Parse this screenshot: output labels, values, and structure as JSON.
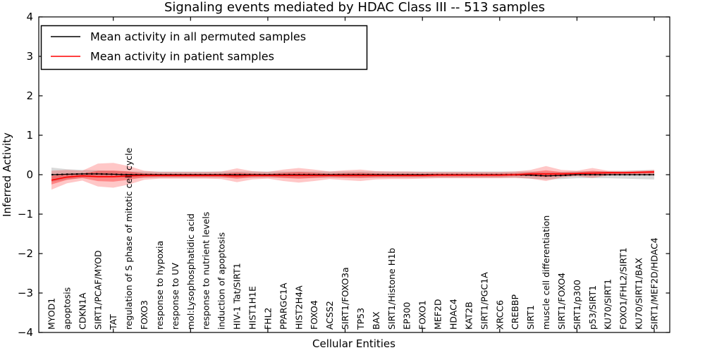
{
  "title": "Signaling events mediated by HDAC Class III -- 513 samples",
  "legend": {
    "position": "upper left",
    "entries": [
      {
        "label": "Mean activity in all permuted samples",
        "color": "#000000"
      },
      {
        "label": "Mean activity in patient samples",
        "color": "#ff0000"
      }
    ]
  },
  "chart_data": {
    "type": "line",
    "title": "Signaling events mediated by HDAC Class III -- 513 samples",
    "xlabel": "Cellular Entities",
    "ylabel": "Inferred Activity",
    "ylim": [
      -4,
      4
    ],
    "yticks": [
      -4,
      -3,
      -2,
      -1,
      0,
      1,
      2,
      3,
      4
    ],
    "xticks": [
      5,
      10,
      15,
      20,
      25,
      30,
      35,
      40
    ],
    "grid": false,
    "legend_position": "upper left",
    "sample_count": 513,
    "categories": [
      "MYOD1",
      "apoptosis",
      "CDKN1A",
      "SIRT1/PCAF/MYOD",
      "TAT",
      "regulation of S phase of mitotic cell cycle",
      "FOXO3",
      "response to hypoxia",
      "response to UV",
      "mol:Lysophosphatidic acid",
      "response to nutrient levels",
      "induction of apoptosis",
      "HIV-1 Tat/SIRT1",
      "HIST1H1E",
      "FHL2",
      "PPARGC1A",
      "HIST2H4A",
      "FOXO4",
      "ACSS2",
      "SIRT1/FOXO3a",
      "TP53",
      "BAX",
      "SIRT1/Histone H1b",
      "EP300",
      "FOXO1",
      "MEF2D",
      "HDAC4",
      "KAT2B",
      "SIRT1/PGC1A",
      "XRCC6",
      "CREBBP",
      "SIRT1",
      "muscle cell differentiation",
      "SIRT1/FOXO4",
      "SIRT1/p300",
      "p53/SIRT1",
      "KU70/SIRT1",
      "FOXO1/FHL2/SIRT1",
      "KU70/SIRT1/BAX",
      "SIRT1/MEF2D/HDAC4"
    ],
    "series": [
      {
        "name": "Mean activity in all permuted samples",
        "color": "#000000",
        "style": "solid-with-dash-markers",
        "values": [
          0.0,
          0.01,
          0.02,
          0.02,
          0.01,
          0.0,
          0.0,
          0.0,
          0.0,
          0.0,
          0.0,
          0.0,
          0.0,
          0.0,
          0.0,
          0.0,
          0.0,
          0.0,
          0.0,
          0.0,
          0.0,
          0.0,
          0.0,
          0.0,
          0.0,
          0.0,
          0.0,
          0.0,
          0.0,
          0.0,
          0.0,
          -0.01,
          -0.03,
          -0.02,
          0.0,
          0.0,
          0.0,
          0.0,
          0.0,
          0.0
        ],
        "band_half_width": [
          0.18,
          0.13,
          0.1,
          0.09,
          0.08,
          0.08,
          0.08,
          0.08,
          0.08,
          0.08,
          0.08,
          0.08,
          0.08,
          0.08,
          0.08,
          0.08,
          0.08,
          0.08,
          0.08,
          0.08,
          0.08,
          0.08,
          0.08,
          0.08,
          0.08,
          0.08,
          0.08,
          0.08,
          0.08,
          0.08,
          0.08,
          0.09,
          0.09,
          0.09,
          0.09,
          0.09,
          0.09,
          0.1,
          0.11,
          0.12
        ],
        "band_color": "#aaaaaa"
      },
      {
        "name": "Mean activity in patient samples",
        "color": "#ff0000",
        "style": "solid",
        "values": [
          -0.14,
          -0.06,
          -0.03,
          -0.05,
          -0.05,
          -0.03,
          -0.02,
          -0.02,
          -0.02,
          -0.02,
          -0.02,
          -0.02,
          -0.03,
          -0.02,
          -0.02,
          -0.02,
          -0.02,
          -0.02,
          -0.02,
          -0.02,
          -0.02,
          -0.02,
          -0.02,
          -0.02,
          -0.02,
          -0.01,
          -0.01,
          -0.01,
          -0.01,
          -0.01,
          0.0,
          0.02,
          0.02,
          0.02,
          0.03,
          0.04,
          0.05,
          0.05,
          0.06,
          0.07
        ],
        "band_upper": [
          0.1,
          0.12,
          0.1,
          0.28,
          0.3,
          0.22,
          0.1,
          0.07,
          0.07,
          0.07,
          0.07,
          0.08,
          0.16,
          0.09,
          0.07,
          0.13,
          0.17,
          0.13,
          0.08,
          0.11,
          0.13,
          0.09,
          0.08,
          0.08,
          0.07,
          0.07,
          0.07,
          0.07,
          0.07,
          0.07,
          0.08,
          0.12,
          0.22,
          0.12,
          0.1,
          0.17,
          0.1,
          0.09,
          0.1,
          0.12
        ],
        "band_lower": [
          -0.38,
          -0.22,
          -0.15,
          -0.3,
          -0.33,
          -0.25,
          -0.13,
          -0.1,
          -0.1,
          -0.1,
          -0.1,
          -0.11,
          -0.19,
          -0.12,
          -0.1,
          -0.16,
          -0.2,
          -0.16,
          -0.11,
          -0.14,
          -0.16,
          -0.12,
          -0.11,
          -0.11,
          -0.1,
          -0.09,
          -0.09,
          -0.09,
          -0.09,
          -0.09,
          -0.08,
          -0.1,
          -0.16,
          -0.07,
          -0.04,
          -0.08,
          -0.02,
          -0.01,
          -0.01,
          -0.02
        ],
        "band_color": "#ff0000"
      }
    ]
  }
}
